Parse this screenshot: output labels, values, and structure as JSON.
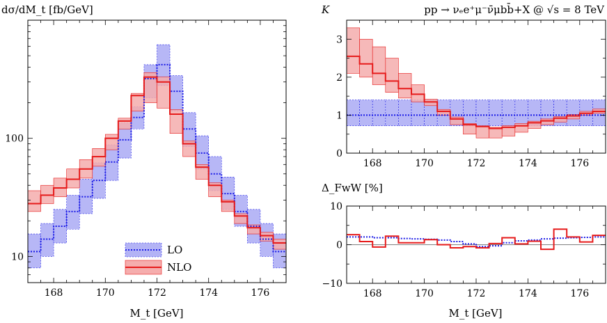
{
  "figure": {
    "process_label": "pp → νₑe⁺μ⁻ν̄μbb̄+X @ √s = 8 TeV",
    "legend": {
      "lo": "LO",
      "nlo": "NLO"
    },
    "colors": {
      "lo_line": "#1a1ae6",
      "lo_band": "#b3b3f5",
      "nlo_line": "#e61a1a",
      "nlo_band": "#f5adad"
    }
  },
  "chart_data": [
    {
      "id": "main",
      "type": "step",
      "ylabel": "dσ/dM_t [fb/GeV]",
      "xlabel": "M_t [GeV]",
      "xlim": [
        167,
        177
      ],
      "ylim": [
        6,
        1000
      ],
      "yscale": "log",
      "yticks": [
        {
          "v": 10,
          "t": "10"
        },
        {
          "v": 100,
          "t": "100"
        }
      ],
      "xticks": [
        {
          "v": 168,
          "t": "168"
        },
        {
          "v": 170,
          "t": "170"
        },
        {
          "v": 172,
          "t": "172"
        },
        {
          "v": 174,
          "t": "174"
        },
        {
          "v": 176,
          "t": "176"
        }
      ],
      "bin_edges": [
        167,
        167.5,
        168,
        168.5,
        169,
        169.5,
        170,
        170.5,
        171,
        171.5,
        172,
        172.5,
        173,
        173.5,
        174,
        174.5,
        175,
        175.5,
        176,
        176.5,
        177
      ],
      "series": [
        {
          "name": "LO",
          "style": "dotted",
          "color": "#1a1ae6",
          "band_color": "#b3b3f5",
          "values": [
            11,
            14,
            18,
            24,
            32,
            44,
            63,
            97,
            150,
            320,
            420,
            250,
            120,
            75,
            50,
            34,
            24,
            18,
            14,
            11
          ],
          "band_low": [
            8,
            10,
            13,
            17,
            23,
            31,
            44,
            68,
            120,
            220,
            280,
            170,
            85,
            55,
            36,
            25,
            18,
            13,
            10,
            8
          ],
          "band_high": [
            15.5,
            19,
            25,
            33,
            45,
            62,
            88,
            135,
            185,
            420,
            620,
            340,
            165,
            105,
            70,
            47,
            33,
            25,
            19,
            15.5
          ]
        },
        {
          "name": "NLO",
          "style": "solid",
          "color": "#e61a1a",
          "band_color": "#f5adad",
          "values": [
            28,
            33,
            38,
            45,
            55,
            70,
            100,
            140,
            230,
            330,
            300,
            160,
            90,
            57,
            40,
            29,
            22,
            17.5,
            15,
            13
          ],
          "band_low": [
            24,
            28,
            32,
            38,
            46,
            58,
            80,
            120,
            170,
            200,
            180,
            110,
            70,
            45,
            32,
            24,
            19,
            15.5,
            13.5,
            11.5
          ],
          "band_high": [
            36,
            40,
            46,
            55,
            66,
            82,
            108,
            148,
            240,
            360,
            330,
            175,
            95,
            60,
            42,
            30,
            23,
            18.5,
            16,
            14
          ]
        }
      ]
    },
    {
      "id": "kfactor",
      "type": "step",
      "ylabel": "K",
      "xlabel": "",
      "xlim": [
        167,
        177
      ],
      "ylim": [
        0,
        3.5
      ],
      "yscale": "linear",
      "yticks": [
        {
          "v": 0,
          "t": "0"
        },
        {
          "v": 1,
          "t": "1"
        },
        {
          "v": 2,
          "t": "2"
        },
        {
          "v": 3,
          "t": "3"
        }
      ],
      "xticks": [
        {
          "v": 168,
          "t": "168"
        },
        {
          "v": 170,
          "t": "170"
        },
        {
          "v": 172,
          "t": "172"
        },
        {
          "v": 174,
          "t": "174"
        },
        {
          "v": 176,
          "t": "176"
        }
      ],
      "bin_edges": [
        167,
        167.5,
        168,
        168.5,
        169,
        169.5,
        170,
        170.5,
        171,
        171.5,
        172,
        172.5,
        173,
        173.5,
        174,
        174.5,
        175,
        175.5,
        176,
        176.5,
        177
      ],
      "series": [
        {
          "name": "LO",
          "style": "dotted",
          "color": "#1a1ae6",
          "band_color": "#b3b3f5",
          "values": [
            1,
            1,
            1,
            1,
            1,
            1,
            1,
            1,
            1,
            1,
            1,
            1,
            1,
            1,
            1,
            1,
            1,
            1,
            1,
            1
          ],
          "band_low": [
            0.72,
            0.72,
            0.72,
            0.72,
            0.72,
            0.72,
            0.72,
            0.72,
            0.72,
            0.72,
            0.72,
            0.72,
            0.72,
            0.72,
            0.72,
            0.72,
            0.72,
            0.72,
            0.72,
            0.72
          ],
          "band_high": [
            1.4,
            1.4,
            1.4,
            1.4,
            1.4,
            1.4,
            1.4,
            1.4,
            1.4,
            1.4,
            1.4,
            1.4,
            1.4,
            1.4,
            1.4,
            1.4,
            1.4,
            1.4,
            1.4,
            1.4
          ]
        },
        {
          "name": "NLO",
          "style": "solid",
          "color": "#e61a1a",
          "band_color": "#f5adad",
          "values": [
            2.55,
            2.35,
            2.1,
            1.9,
            1.7,
            1.55,
            1.35,
            1.1,
            0.9,
            0.75,
            0.7,
            0.65,
            0.68,
            0.72,
            0.8,
            0.85,
            0.92,
            0.98,
            1.05,
            1.1
          ],
          "band_low": [
            2.1,
            2.0,
            1.8,
            1.6,
            1.45,
            1.35,
            1.25,
            1.0,
            0.75,
            0.5,
            0.4,
            0.4,
            0.45,
            0.55,
            0.65,
            0.75,
            0.82,
            0.9,
            1.0,
            1.05
          ],
          "band_high": [
            3.3,
            3.0,
            2.8,
            2.5,
            2.1,
            1.8,
            1.42,
            1.15,
            0.95,
            0.78,
            0.72,
            0.68,
            0.72,
            0.78,
            0.84,
            0.9,
            0.96,
            1.02,
            1.1,
            1.16
          ]
        }
      ]
    },
    {
      "id": "fww",
      "type": "step",
      "ylabel": "Δ_FwW [%]",
      "xlabel": "M_t [GeV]",
      "xlim": [
        167,
        177
      ],
      "ylim": [
        -10,
        10
      ],
      "yscale": "linear",
      "yticks": [
        {
          "v": -10,
          "t": "−10"
        },
        {
          "v": 0,
          "t": "0"
        },
        {
          "v": 10,
          "t": "10"
        }
      ],
      "xticks": [
        {
          "v": 168,
          "t": "168"
        },
        {
          "v": 170,
          "t": "170"
        },
        {
          "v": 172,
          "t": "172"
        },
        {
          "v": 174,
          "t": "174"
        },
        {
          "v": 176,
          "t": "176"
        }
      ],
      "bin_edges": [
        167,
        167.5,
        168,
        168.5,
        169,
        169.5,
        170,
        170.5,
        171,
        171.5,
        172,
        172.5,
        173,
        173.5,
        174,
        174.5,
        175,
        175.5,
        176,
        176.5,
        177
      ],
      "series": [
        {
          "name": "LO",
          "style": "dotted",
          "color": "#1a1ae6",
          "values": [
            2.0,
            2.0,
            1.8,
            1.8,
            1.6,
            1.5,
            1.4,
            1.2,
            0.8,
            0.2,
            -0.5,
            -0.3,
            0.5,
            1.0,
            1.2,
            1.5,
            1.7,
            1.8,
            1.9,
            2.0
          ]
        },
        {
          "name": "NLO",
          "style": "solid",
          "color": "#e61a1a",
          "values": [
            2.6,
            0.8,
            -0.6,
            2.2,
            0.5,
            0.5,
            1.3,
            0.0,
            -0.8,
            -0.5,
            -0.8,
            0.3,
            1.8,
            0.2,
            0.9,
            -1.2,
            4.0,
            2.0,
            0.7,
            2.4
          ]
        }
      ]
    }
  ]
}
